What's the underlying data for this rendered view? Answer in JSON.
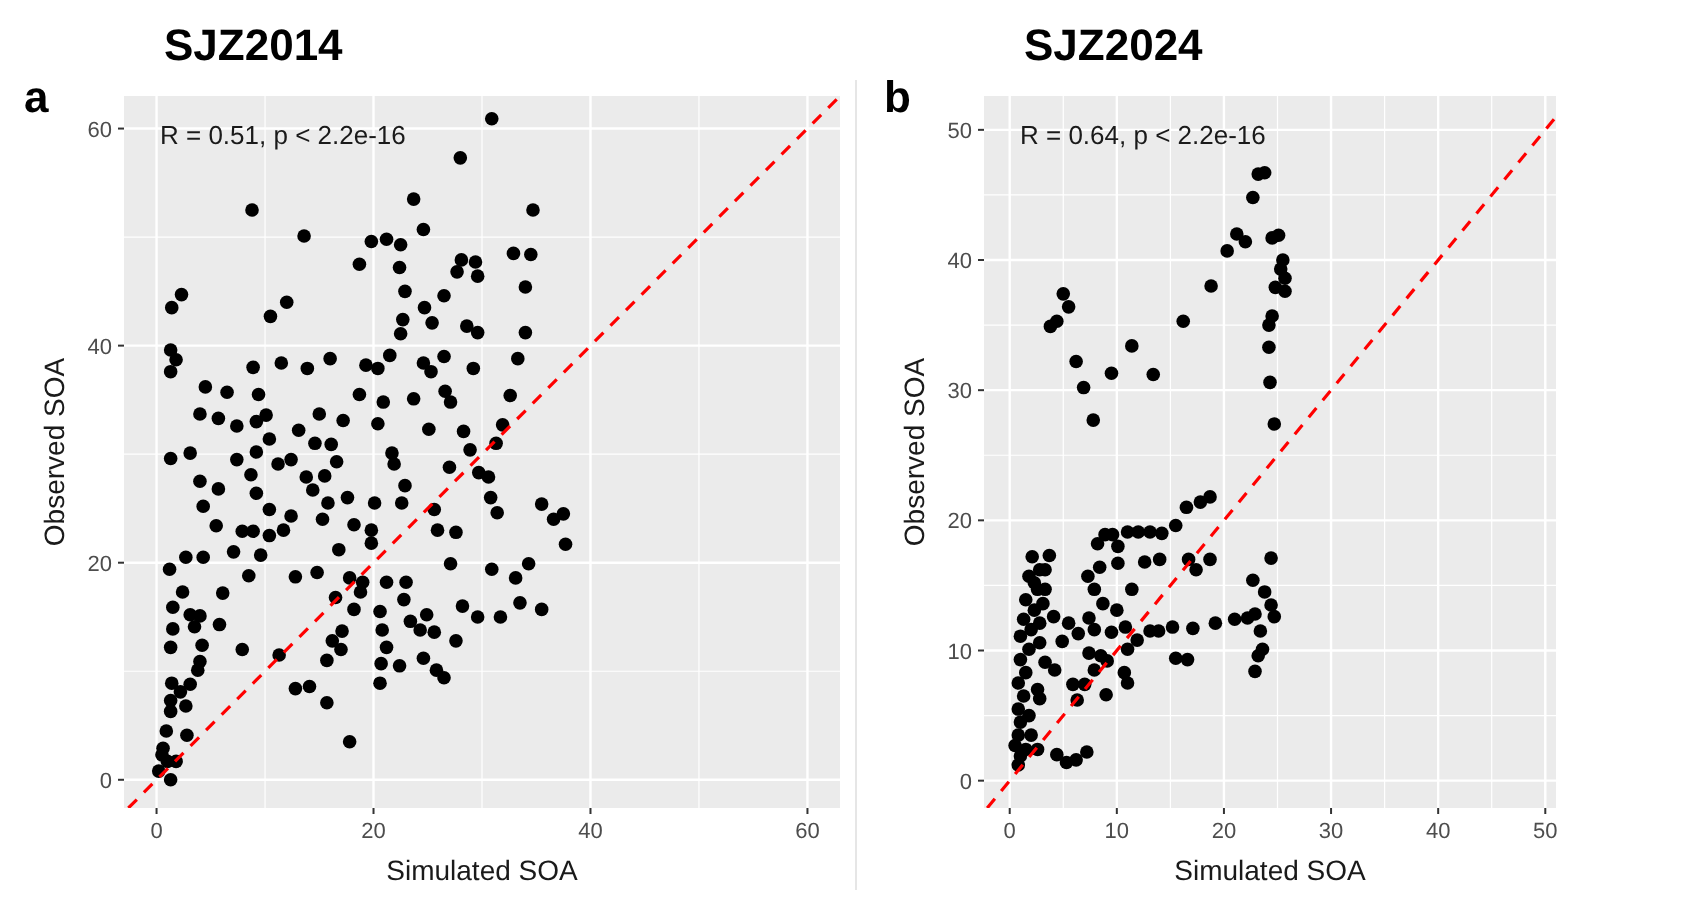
{
  "chart_data": [
    {
      "type": "scatter",
      "title": "SJZ2014",
      "xlabel": "Simulated SOA",
      "ylabel": "Observed SOA",
      "annotations": [
        "a",
        "R = 0.51, p < 2.2e-16"
      ],
      "xlim": [
        -3,
        63
      ],
      "ylim": [
        -2.6,
        63
      ],
      "xticks": [
        0,
        20,
        40,
        60
      ],
      "yticks": [
        0,
        20,
        40,
        60
      ],
      "grid": true,
      "series": [
        {
          "marker": "circle",
          "color": "#000000",
          "x": [
            30.9,
            28.0,
            8.8,
            23.7,
            34.7,
            13.6,
            24.6,
            19.8,
            21.2,
            22.5,
            18.7,
            22.4,
            22.9,
            28.1,
            29.4,
            27.7,
            29.6,
            32.9,
            34.5,
            34.0,
            26.5,
            2.3,
            1.4,
            12.0,
            10.5,
            24.7,
            25.4,
            22.7,
            22.5,
            28.6,
            29.6,
            34.0,
            1.3,
            1.8,
            1.3,
            8.9,
            11.5,
            13.9,
            16.0,
            19.3,
            20.4,
            21.5,
            24.6,
            25.3,
            26.5,
            29.2,
            33.3,
            4.5,
            6.5,
            9.4,
            18.7,
            23.7,
            26.6,
            27.1,
            32.6,
            20.9,
            4.0,
            5.7,
            10.1,
            15.0,
            17.2,
            20.4,
            7.4,
            9.2,
            13.1,
            25.1,
            28.3,
            31.9,
            31.3,
            3.1,
            1.3,
            10.4,
            9.2,
            14.6,
            16.1,
            21.7,
            28.9,
            7.4,
            11.2,
            12.4,
            16.6,
            21.9,
            27.0,
            29.7,
            30.6,
            4.0,
            8.7,
            13.8,
            15.5,
            5.7,
            9.2,
            14.4,
            17.6,
            20.1,
            22.9,
            30.8,
            4.3,
            10.4,
            15.8,
            22.6,
            25.6,
            35.5,
            31.4,
            36.6,
            37.5,
            37.7,
            5.5,
            7.9,
            8.9,
            10.4,
            11.7,
            12.4,
            15.3,
            18.2,
            19.8,
            25.9,
            27.6,
            7.1,
            9.6,
            16.8,
            19.8,
            27.1,
            1.2,
            2.7,
            4.3,
            8.5,
            12.8,
            14.8,
            17.8,
            19.0,
            21.2,
            23.0,
            30.9,
            33.1,
            34.3,
            6.1,
            2.4,
            1.5,
            3.1,
            4.0,
            16.5,
            18.8,
            22.8,
            28.2,
            29.6,
            31.7,
            33.5,
            35.5,
            18.2,
            20.6,
            23.4,
            24.9,
            5.8,
            1.5,
            3.5,
            17.1,
            20.8,
            24.3,
            25.6,
            1.3,
            4.2,
            16.2,
            27.6,
            7.9,
            17.0,
            21.2,
            11.3,
            4.0,
            15.7,
            24.6,
            20.7,
            22.4,
            25.8,
            26.5,
            3.8,
            3.1,
            1.4,
            2.2,
            20.6,
            12.8,
            14.1,
            15.7,
            1.3,
            2.7,
            1.3,
            2.8,
            17.8,
            0.9,
            0.6,
            1.0,
            0.2,
            1.3,
            1.8,
            0.5
          ],
          "values": [
            60.9,
            57.3,
            52.5,
            53.5,
            52.5,
            50.1,
            50.7,
            49.6,
            49.8,
            49.3,
            47.5,
            47.2,
            45.0,
            47.9,
            47.7,
            46.8,
            46.4,
            48.5,
            48.4,
            45.4,
            44.6,
            44.7,
            43.5,
            44.0,
            42.7,
            43.5,
            42.1,
            42.4,
            41.1,
            41.8,
            41.2,
            41.2,
            39.6,
            38.7,
            37.6,
            38.0,
            38.4,
            37.9,
            38.8,
            38.2,
            37.9,
            39.1,
            38.4,
            37.6,
            39.0,
            37.9,
            38.8,
            36.2,
            35.7,
            35.5,
            35.5,
            35.1,
            35.8,
            34.8,
            35.4,
            34.8,
            33.7,
            33.3,
            33.6,
            33.7,
            33.1,
            32.8,
            32.6,
            33.0,
            32.2,
            32.3,
            32.1,
            32.7,
            31.0,
            30.1,
            29.6,
            31.4,
            30.2,
            31.0,
            30.9,
            30.1,
            30.4,
            29.5,
            29.1,
            29.5,
            29.3,
            29.1,
            28.8,
            28.3,
            27.9,
            27.5,
            28.1,
            27.9,
            28.0,
            26.8,
            26.4,
            26.7,
            26.0,
            25.5,
            27.1,
            26.0,
            25.2,
            24.9,
            25.5,
            25.5,
            24.9,
            25.4,
            24.6,
            24.0,
            24.5,
            21.7,
            23.4,
            22.9,
            22.9,
            22.5,
            23.0,
            24.3,
            24.0,
            23.5,
            23.0,
            23.0,
            22.8,
            21.0,
            20.7,
            21.2,
            21.8,
            19.9,
            19.4,
            20.5,
            20.5,
            18.8,
            18.7,
            19.1,
            18.6,
            18.2,
            18.2,
            18.2,
            19.4,
            18.6,
            19.9,
            17.2,
            17.3,
            15.9,
            15.2,
            15.1,
            16.8,
            17.3,
            16.6,
            16.0,
            15.0,
            15.0,
            16.3,
            15.7,
            15.7,
            15.5,
            14.6,
            15.2,
            14.3,
            13.9,
            14.1,
            13.7,
            13.8,
            13.8,
            13.6,
            12.2,
            12.4,
            12.8,
            12.8,
            12.0,
            12.0,
            12.2,
            11.5,
            10.9,
            11.0,
            11.2,
            10.7,
            10.5,
            10.1,
            9.4,
            10.1,
            8.8,
            8.9,
            8.1,
            8.9,
            8.4,
            8.6,
            7.1,
            7.3,
            6.8,
            6.3,
            4.1,
            3.5,
            4.5,
            2.9,
            1.7,
            0.8,
            0.0,
            1.7,
            2.3
          ]
        },
        {
          "type": "line",
          "color": "#ff0000",
          "line_style": "dashed",
          "x": [
            -2.6,
            63
          ],
          "values": [
            -2.6,
            63
          ]
        }
      ]
    },
    {
      "type": "scatter",
      "title": "SJZ2024",
      "xlabel": "Simulated SOA",
      "ylabel": "Observed SOA",
      "annotations": [
        "b",
        "R = 0.64, p < 2.2e-16"
      ],
      "xlim": [
        -2.4,
        51
      ],
      "ylim": [
        -2.1,
        52.6
      ],
      "xticks": [
        0,
        10,
        20,
        30,
        40,
        50
      ],
      "yticks": [
        0,
        10,
        20,
        30,
        40,
        50
      ],
      "grid": true,
      "series": [
        {
          "marker": "circle",
          "color": "#000000",
          "x": [
            23.8,
            23.2,
            22.7,
            21.2,
            22.0,
            20.3,
            24.5,
            25.1,
            25.5,
            25.3,
            25.7,
            25.7,
            24.8,
            18.8,
            5.0,
            5.5,
            4.4,
            3.8,
            16.2,
            24.5,
            24.2,
            24.2,
            11.4,
            6.2,
            9.5,
            13.4,
            6.9,
            24.3,
            7.8,
            24.7,
            18.7,
            17.8,
            16.5,
            15.5,
            14.2,
            13.1,
            12.0,
            11.0,
            9.6,
            8.9,
            8.2,
            10.1,
            3.7,
            2.1,
            24.4,
            18.7,
            16.7,
            14.0,
            12.6,
            10.1,
            8.4,
            17.4,
            7.3,
            22.7,
            11.4,
            7.9,
            23.8,
            8.7,
            10.0,
            24.4,
            24.7,
            4.1,
            5.5,
            7.4,
            10.8,
            13.1,
            13.9,
            15.2,
            17.1,
            19.2,
            21.0,
            22.2,
            22.9,
            23.4,
            6.4,
            7.9,
            4.9,
            9.5,
            11.9,
            23.6,
            23.2,
            22.9,
            7.4,
            8.5,
            11.0,
            15.5,
            16.6,
            4.2,
            9.1,
            10.7,
            11.0,
            7.9,
            5.9,
            6.3,
            7.0,
            9.0,
            2.8,
            2.6,
            4.4,
            5.3,
            6.2,
            7.2,
            0.8,
            1.0,
            0.5,
            0.8,
            1.0,
            0.8,
            1.3,
            0.8,
            1.5,
            1.0,
            1.8,
            1.0,
            2.0,
            1.3,
            2.3,
            1.5,
            2.6,
            1.8,
            2.8,
            2.3,
            3.1,
            2.8,
            3.3,
            2.6,
            1.8,
            2.0,
            1.5,
            2.8,
            3.3,
            3.3
          ],
          "values": [
            46.7,
            46.6,
            44.8,
            42.0,
            41.4,
            40.7,
            41.7,
            41.9,
            40.0,
            39.3,
            38.6,
            37.6,
            37.9,
            38.0,
            37.4,
            36.4,
            35.3,
            34.9,
            35.3,
            35.7,
            35.0,
            33.3,
            33.4,
            32.2,
            31.3,
            31.2,
            30.2,
            30.6,
            27.7,
            27.4,
            21.8,
            21.4,
            21.0,
            19.6,
            19.0,
            19.1,
            19.1,
            19.1,
            18.9,
            18.9,
            18.2,
            18.0,
            17.3,
            17.2,
            17.1,
            17.0,
            17.0,
            17.0,
            16.8,
            16.7,
            16.4,
            16.2,
            15.7,
            15.4,
            14.7,
            14.7,
            14.5,
            13.6,
            13.1,
            13.5,
            12.6,
            12.6,
            12.1,
            12.5,
            11.8,
            11.5,
            11.5,
            11.8,
            11.7,
            12.1,
            12.4,
            12.5,
            12.8,
            11.5,
            11.3,
            11.6,
            10.7,
            11.4,
            10.8,
            10.1,
            9.6,
            8.4,
            9.8,
            9.6,
            10.1,
            9.4,
            9.3,
            8.5,
            9.2,
            8.3,
            7.5,
            8.5,
            7.4,
            6.2,
            7.4,
            6.6,
            6.3,
            2.4,
            2.0,
            1.4,
            1.6,
            2.2,
            1.2,
            1.9,
            2.7,
            3.5,
            4.5,
            5.5,
            6.5,
            7.5,
            8.3,
            9.3,
            10.1,
            11.1,
            11.6,
            12.4,
            13.1,
            13.9,
            14.7,
            15.7,
            16.2,
            15.2,
            13.6,
            10.6,
            9.1,
            7.0,
            5.0,
            3.5,
            2.4,
            12.1,
            14.7,
            16.2
          ]
        },
        {
          "type": "line",
          "color": "#ff0000",
          "line_style": "dashed",
          "x": [
            -2.1,
            51
          ],
          "values": [
            -2.1,
            51
          ]
        }
      ]
    }
  ]
}
